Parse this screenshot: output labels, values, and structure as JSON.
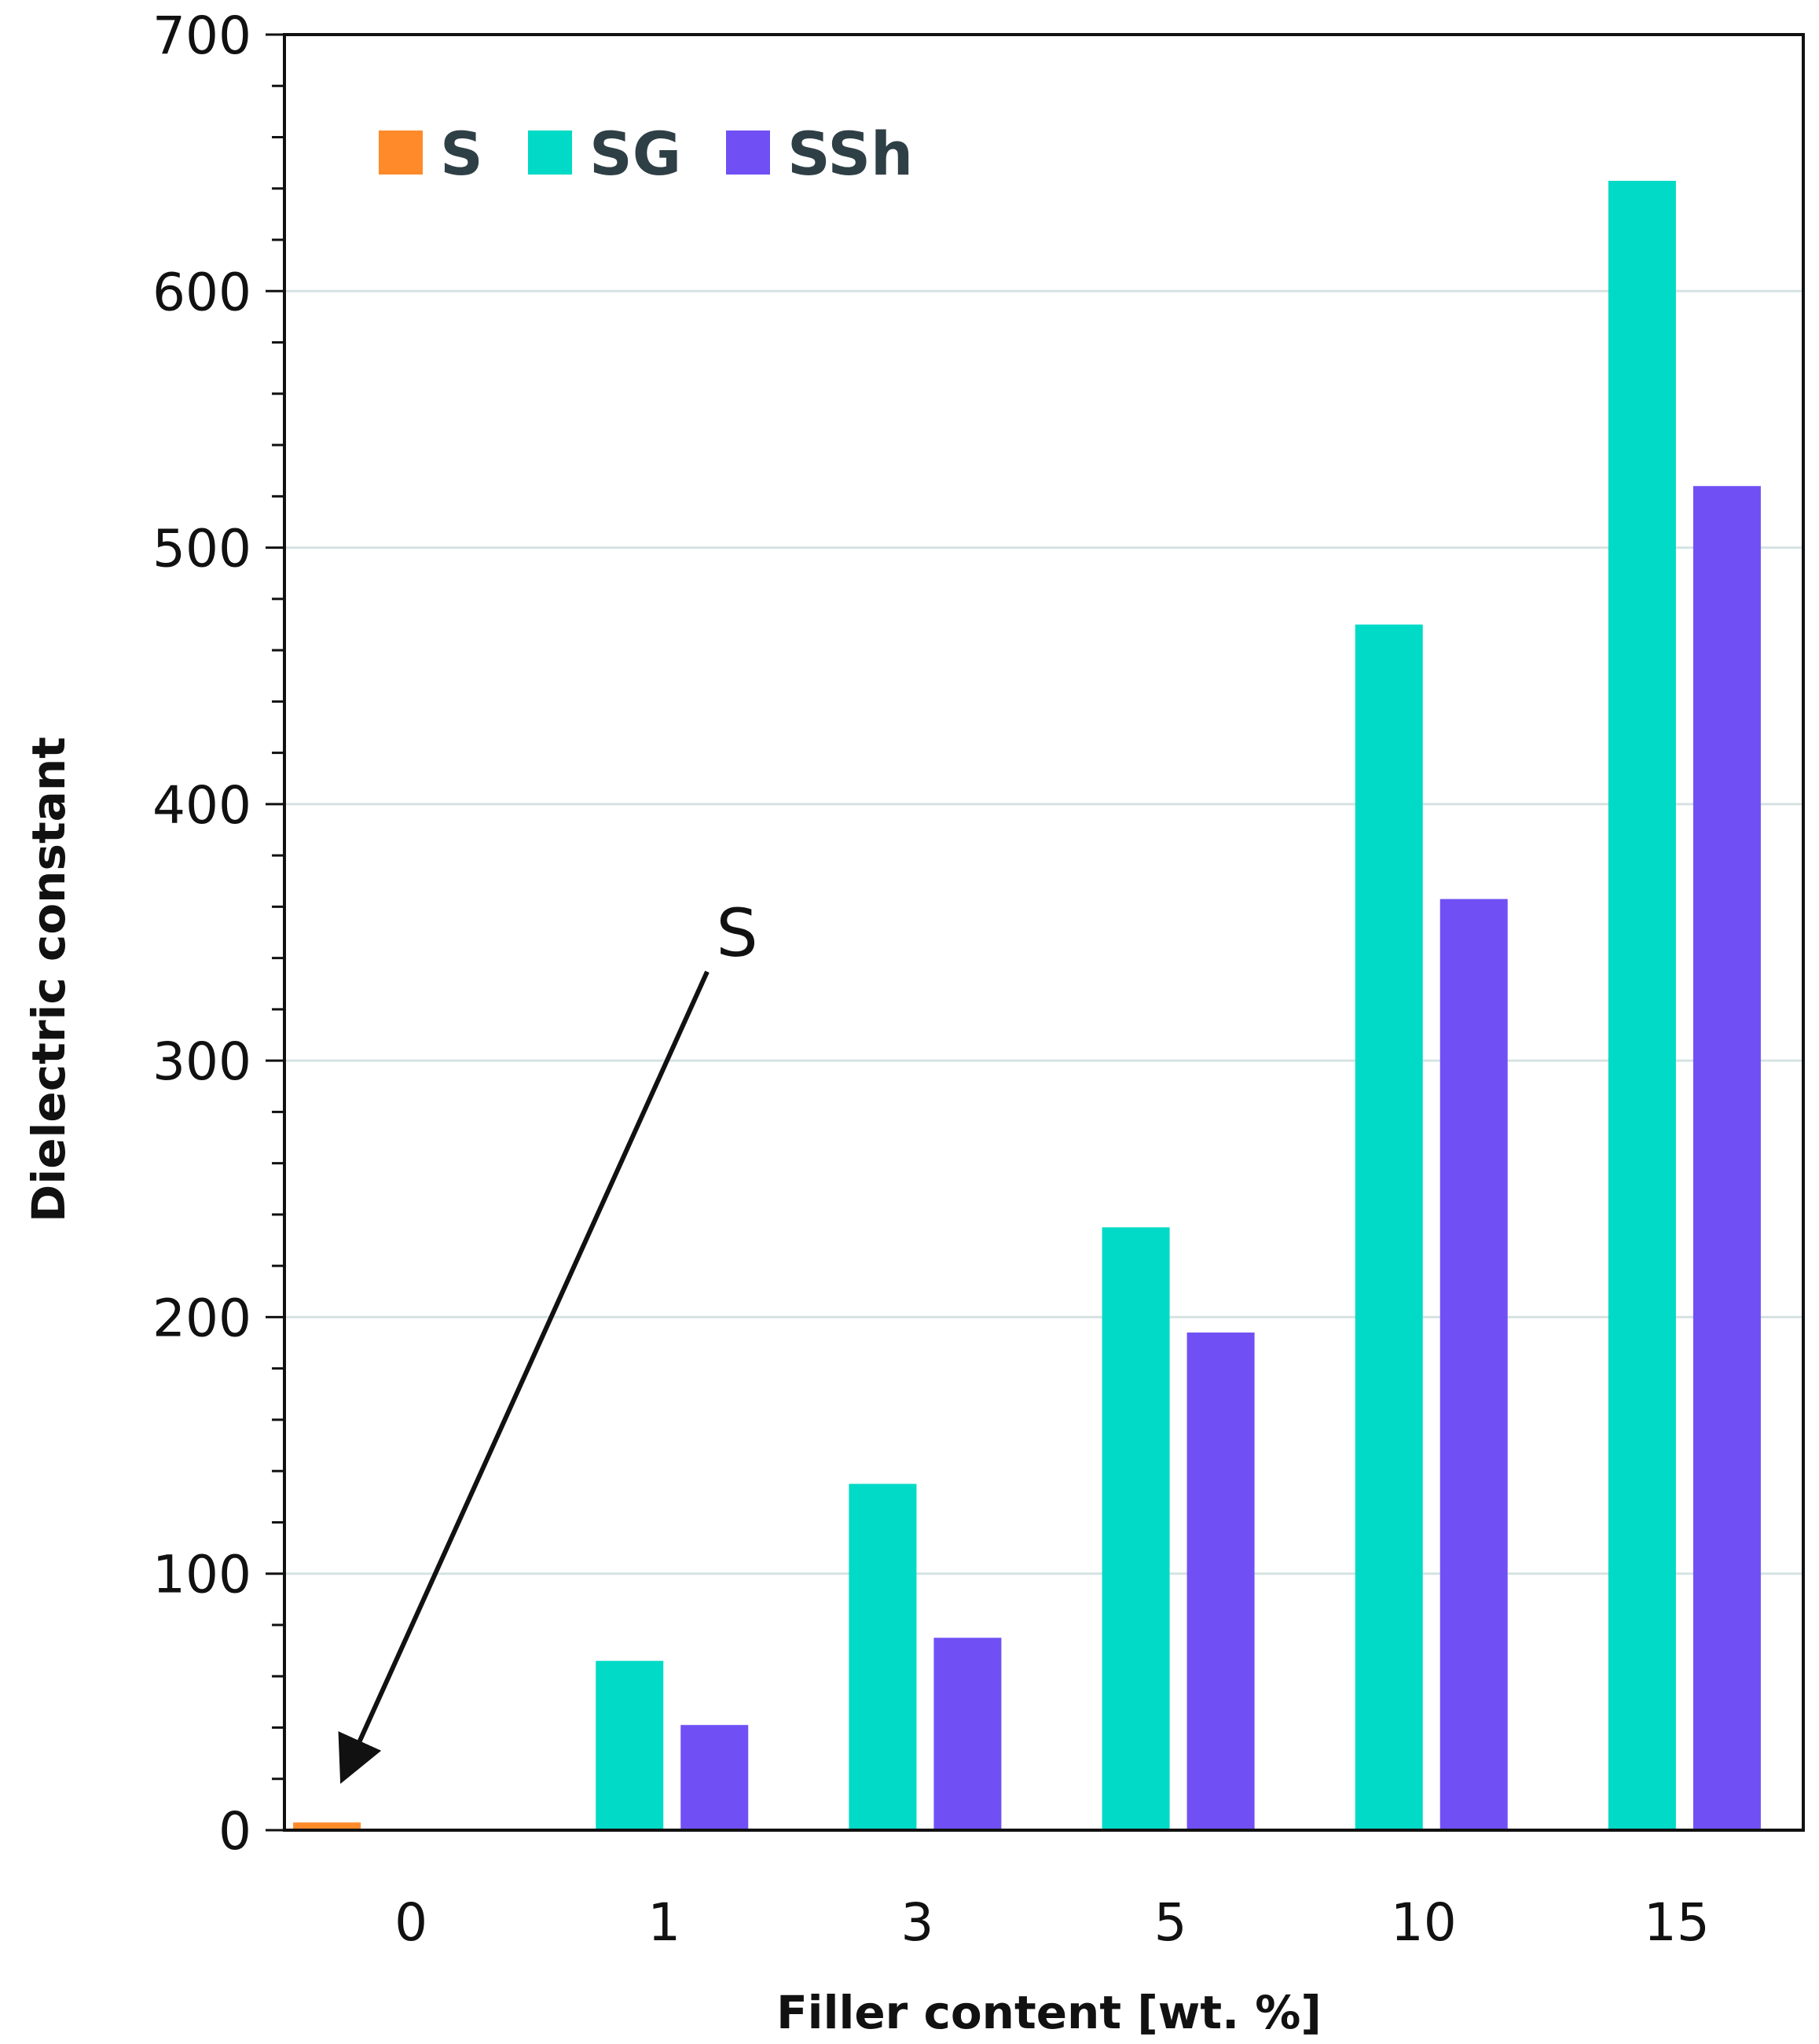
{
  "chart_data": {
    "type": "bar",
    "categories": [
      "0",
      "1",
      "3",
      "5",
      "10",
      "15"
    ],
    "series": [
      {
        "name": "S",
        "color": "#ff8a2a",
        "values": [
          3,
          null,
          null,
          null,
          null,
          null
        ]
      },
      {
        "name": "SG",
        "color": "#00dac6",
        "values": [
          null,
          66,
          135,
          235,
          470,
          643
        ]
      },
      {
        "name": "SSh",
        "color": "#7050f5",
        "values": [
          null,
          41,
          75,
          194,
          363,
          524
        ]
      }
    ],
    "title": "",
    "xlabel": "Filler content [wt. %]",
    "ylabel": "Dielectric constant",
    "ylim": [
      0,
      700
    ],
    "yticks": [
      0,
      100,
      200,
      300,
      400,
      500,
      600,
      700
    ],
    "ytick_labels": [
      "0",
      "100",
      "200",
      "300",
      "400",
      "500",
      "600",
      "700"
    ],
    "minor_ticks_per_major": 5,
    "grid": true,
    "grid_color": "#d6e2e2",
    "legend_position": "top-left",
    "annotations": [
      {
        "text": "S",
        "points_to": {
          "category": "0",
          "series": "S"
        }
      }
    ]
  }
}
